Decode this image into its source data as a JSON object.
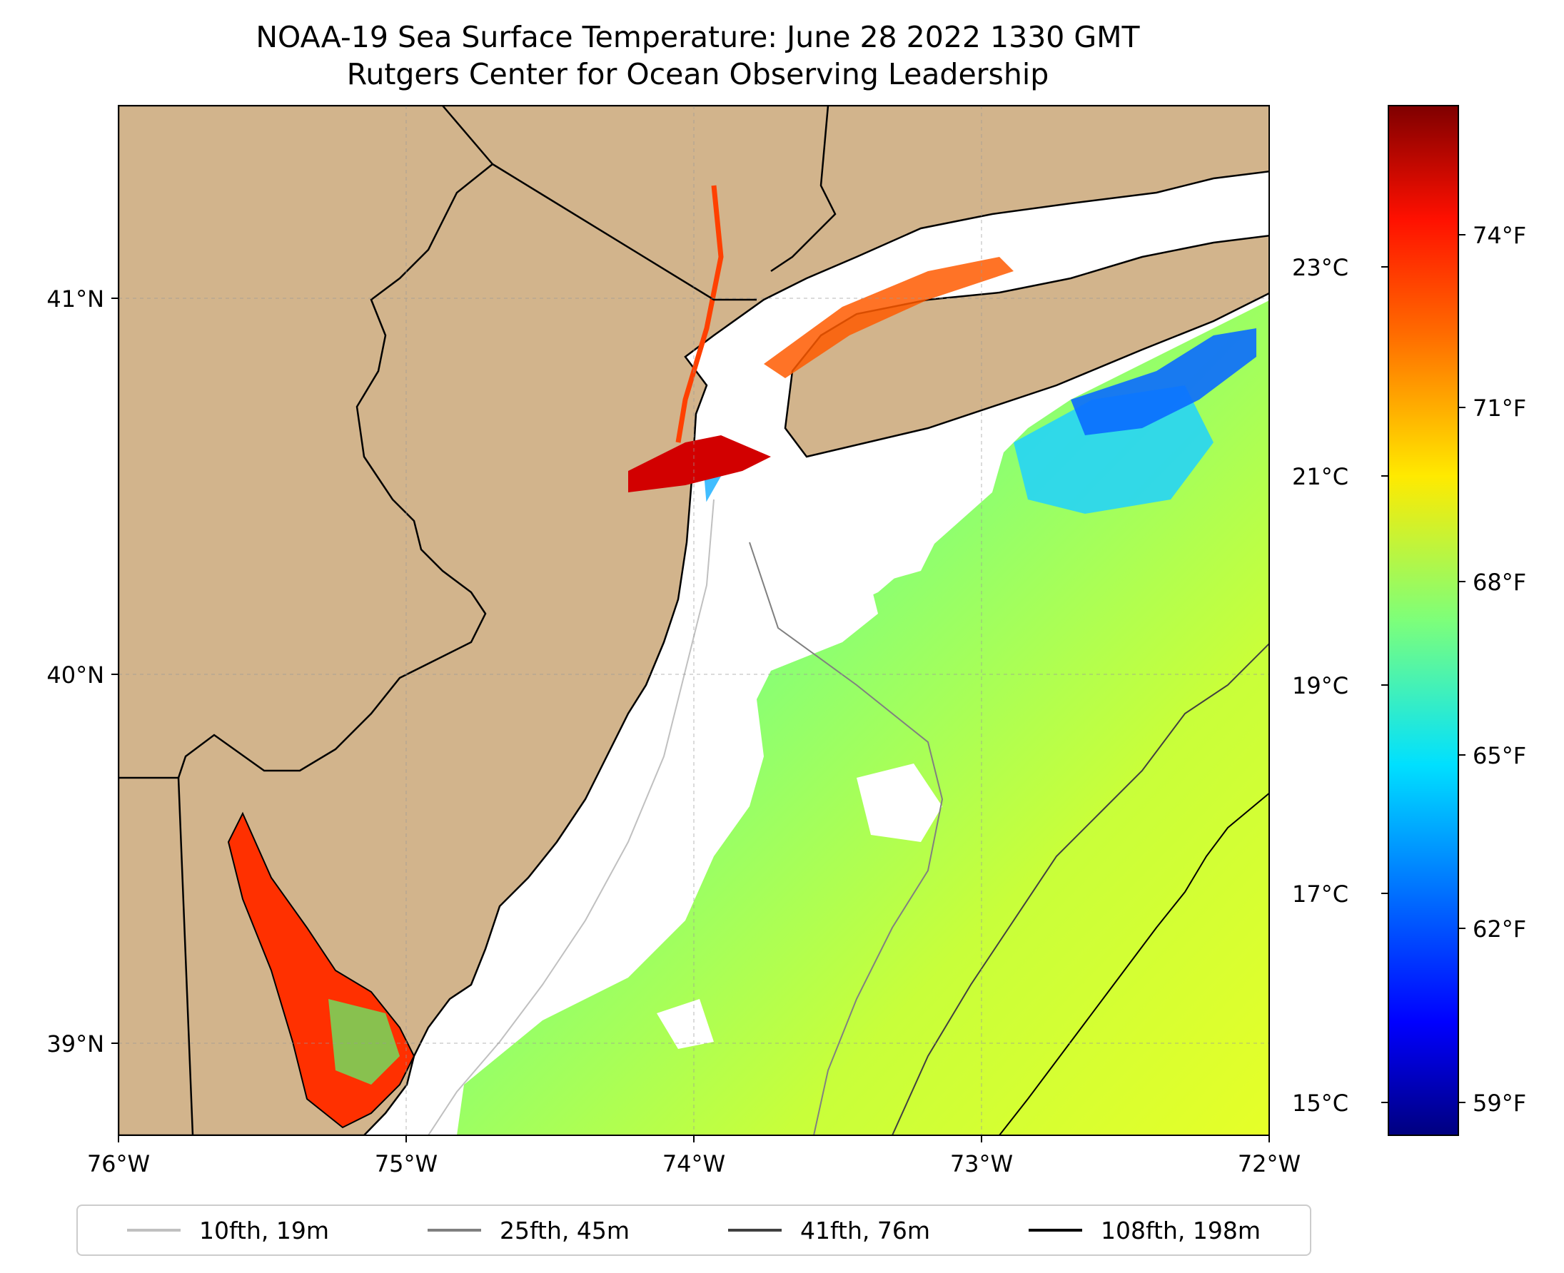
{
  "title": {
    "line1": "NOAA-19 Sea Surface Temperature: June 28 2022 1330 GMT",
    "line2": "Rutgers Center for Ocean Observing Leadership"
  },
  "map": {
    "land_color": "#d2b48c",
    "no_data_color": "#ffffff",
    "lon_range": [
      -76,
      -72
    ],
    "lat_range": [
      38.75,
      41.5
    ],
    "lat_ticks": [
      "41°N",
      "40°N",
      "39°N"
    ],
    "lon_ticks": [
      "76°W",
      "75°W",
      "74°W",
      "73°W",
      "72°W"
    ]
  },
  "colorbar": {
    "colormap": "jet",
    "celsius_ticks": [
      "23°C",
      "21°C",
      "19°C",
      "17°C",
      "15°C"
    ],
    "fahrenheit_ticks": [
      "74°F",
      "71°F",
      "68°F",
      "65°F",
      "62°F",
      "59°F"
    ]
  },
  "legend": {
    "items": [
      {
        "label": "10fth, 19m",
        "color": "#c0c0c0"
      },
      {
        "label": "25fth, 45m",
        "color": "#808080"
      },
      {
        "label": "41fth, 76m",
        "color": "#404040"
      },
      {
        "label": "108fth, 198m",
        "color": "#000000"
      }
    ]
  }
}
